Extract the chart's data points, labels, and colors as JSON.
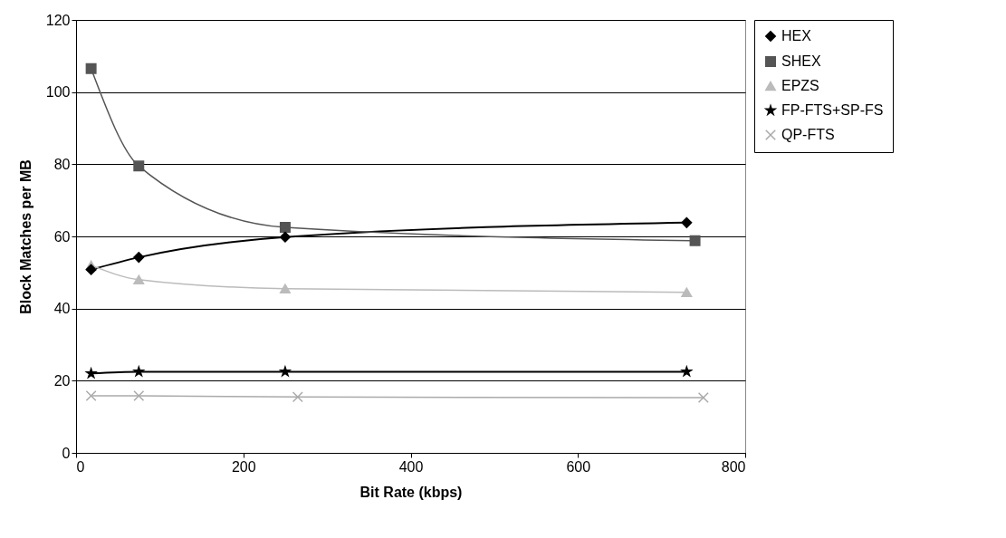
{
  "chart_data": {
    "type": "line",
    "xlabel": "Bit Rate (kbps)",
    "ylabel": "Block Matches per MB",
    "xlim": [
      0,
      800
    ],
    "xticks": [
      0,
      200,
      400,
      600,
      800
    ],
    "ylim": [
      0,
      120
    ],
    "yticks": [
      0,
      20,
      40,
      60,
      80,
      100,
      120
    ],
    "grid": "y",
    "legend": "right",
    "line_style": "solid",
    "series": [
      {
        "name": "HEX",
        "color": "#000000",
        "marker": "diamond",
        "x": [
          18,
          75,
          250,
          730
        ],
        "values": [
          50.8,
          54.2,
          59.8,
          63.8
        ]
      },
      {
        "name": "SHEX",
        "color": "#555555",
        "marker": "square",
        "x": [
          18,
          75,
          250,
          740
        ],
        "values": [
          106.5,
          79.5,
          62.5,
          58.8
        ]
      },
      {
        "name": "EPZS",
        "color": "#bbbbbb",
        "marker": "triangle",
        "x": [
          18,
          75,
          250,
          730
        ],
        "values": [
          52,
          48,
          45.5,
          44.5
        ]
      },
      {
        "name": "FP-FTS+SP-FS",
        "color": "#000000",
        "marker": "star",
        "x": [
          18,
          75,
          250,
          730
        ],
        "values": [
          22,
          22.5,
          22.5,
          22.5
        ]
      },
      {
        "name": "QP-FTS",
        "color": "#aaaaaa",
        "marker": "cross",
        "x": [
          18,
          75,
          265,
          750
        ],
        "values": [
          15.8,
          15.8,
          15.5,
          15.3
        ]
      }
    ]
  }
}
